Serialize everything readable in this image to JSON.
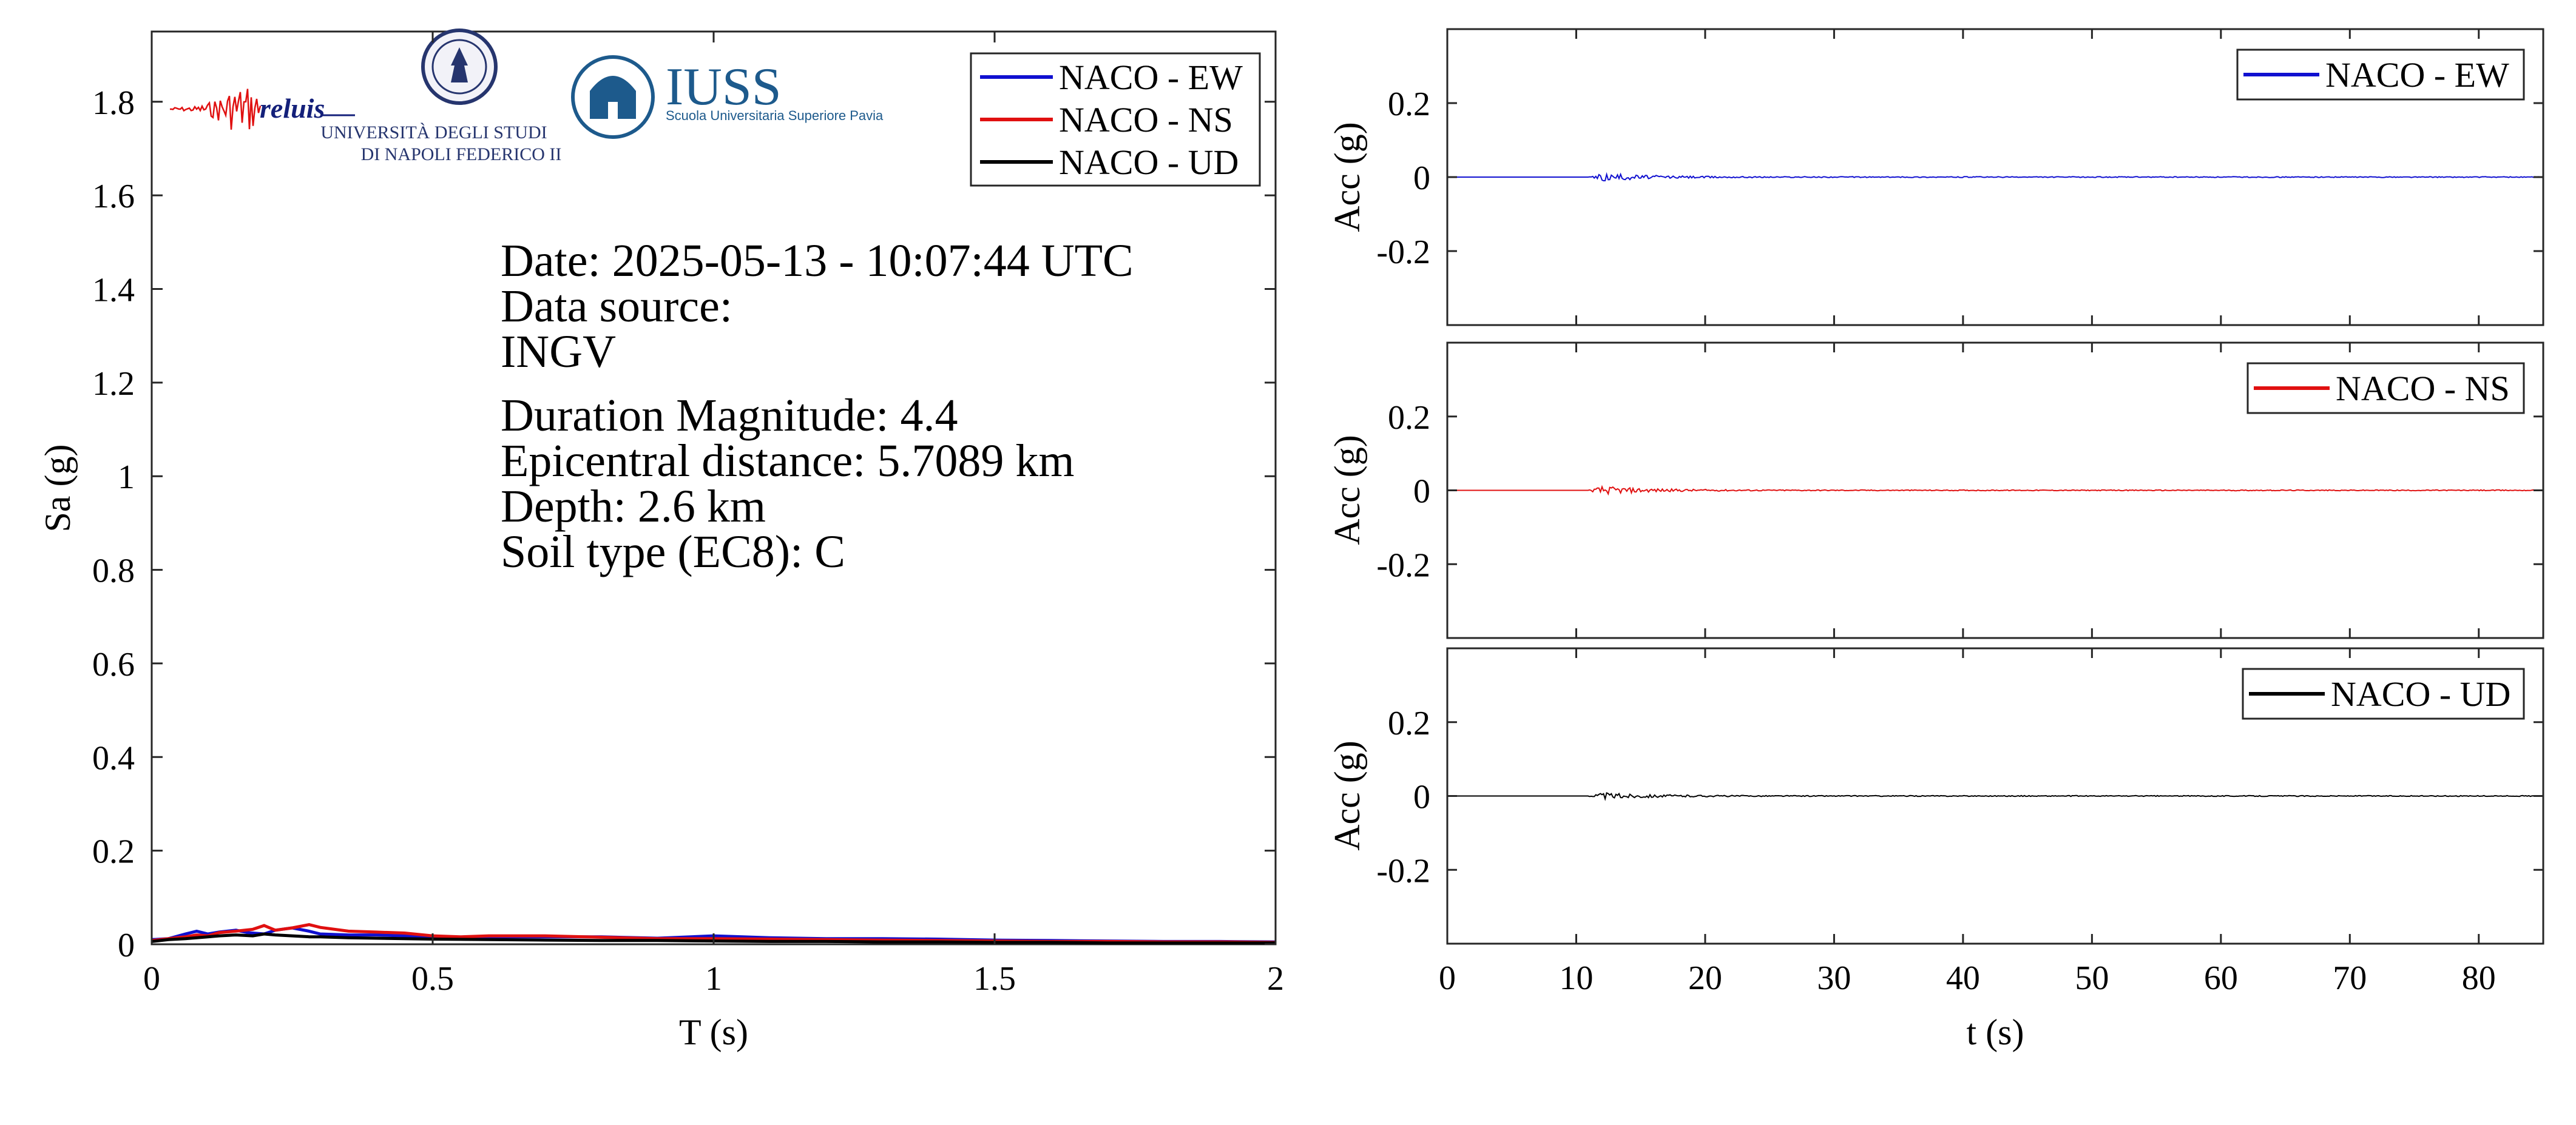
{
  "logos": {
    "reluis": "reluis",
    "unina_line1": "UNIVERSITÀ DEGLI STUDI",
    "unina_line2": "DI NAPOLI FEDERICO II",
    "iuss_title": "IUSS",
    "iuss_subtitle": "Scuola Universitaria Superiore Pavia"
  },
  "info": {
    "date": "Date: 2025-05-13 - 10:07:44 UTC",
    "source_label": "Data source:",
    "source": "INGV",
    "magnitude": "Duration Magnitude: 4.4",
    "distance": "Epicentral distance: 5.7089 km",
    "depth": "Depth: 2.6 km",
    "soil": "Soil type (EC8): C"
  },
  "colors": {
    "EW": "#1010d0",
    "NS": "#e01010",
    "UD": "#000000"
  },
  "chart_data": [
    {
      "type": "line",
      "xlabel": "T (s)",
      "ylabel": "Sa (g)",
      "xlim": [
        0,
        2
      ],
      "ylim": [
        0,
        1.95
      ],
      "xticks": [
        0,
        0.5,
        1,
        1.5,
        2
      ],
      "xtick_labels": [
        "0",
        "0.5",
        "1",
        "1.5",
        "2"
      ],
      "yticks": [
        0,
        0.2,
        0.4,
        0.6,
        0.8,
        1,
        1.2,
        1.4,
        1.6,
        1.8
      ],
      "ytick_labels": [
        "0",
        "0.2",
        "0.4",
        "0.6",
        "0.8",
        "1",
        "1.2",
        "1.4",
        "1.6",
        "1.8"
      ],
      "grid": false,
      "legend_position": "top-right",
      "series": [
        {
          "name": "NACO - EW",
          "color_key": "EW",
          "x": [
            0,
            0.03,
            0.06,
            0.08,
            0.1,
            0.12,
            0.15,
            0.17,
            0.2,
            0.22,
            0.25,
            0.28,
            0.3,
            0.35,
            0.4,
            0.45,
            0.5,
            0.55,
            0.6,
            0.7,
            0.8,
            0.9,
            1.0,
            1.1,
            1.2,
            1.3,
            1.4,
            1.5,
            1.6,
            1.7,
            1.8,
            1.9,
            2.0
          ],
          "y": [
            0.01,
            0.012,
            0.022,
            0.028,
            0.022,
            0.026,
            0.03,
            0.025,
            0.022,
            0.03,
            0.035,
            0.028,
            0.022,
            0.02,
            0.02,
            0.018,
            0.016,
            0.015,
            0.016,
            0.016,
            0.016,
            0.013,
            0.018,
            0.014,
            0.012,
            0.012,
            0.011,
            0.009,
            0.008,
            0.007,
            0.006,
            0.006,
            0.005
          ]
        },
        {
          "name": "NACO - NS",
          "color_key": "NS",
          "x": [
            0,
            0.03,
            0.06,
            0.08,
            0.1,
            0.12,
            0.15,
            0.18,
            0.2,
            0.22,
            0.25,
            0.28,
            0.3,
            0.35,
            0.4,
            0.45,
            0.5,
            0.55,
            0.6,
            0.7,
            0.8,
            0.9,
            1.0,
            1.1,
            1.2,
            1.3,
            1.4,
            1.5,
            1.6,
            1.7,
            1.8,
            1.9,
            2.0
          ],
          "y": [
            0.008,
            0.012,
            0.016,
            0.02,
            0.018,
            0.025,
            0.028,
            0.032,
            0.04,
            0.03,
            0.035,
            0.042,
            0.036,
            0.028,
            0.026,
            0.024,
            0.018,
            0.016,
            0.018,
            0.018,
            0.015,
            0.012,
            0.012,
            0.011,
            0.01,
            0.009,
            0.008,
            0.007,
            0.006,
            0.006,
            0.005,
            0.005,
            0.004
          ]
        },
        {
          "name": "NACO - UD",
          "color_key": "UD",
          "x": [
            0,
            0.03,
            0.06,
            0.08,
            0.1,
            0.12,
            0.15,
            0.18,
            0.2,
            0.22,
            0.25,
            0.28,
            0.3,
            0.35,
            0.4,
            0.45,
            0.5,
            0.6,
            0.7,
            0.8,
            0.9,
            1.0,
            1.1,
            1.2,
            1.3,
            1.4,
            1.5,
            1.6,
            1.7,
            1.8,
            1.9,
            2.0
          ],
          "y": [
            0.006,
            0.01,
            0.012,
            0.014,
            0.016,
            0.018,
            0.02,
            0.018,
            0.022,
            0.02,
            0.018,
            0.016,
            0.016,
            0.014,
            0.013,
            0.012,
            0.011,
            0.01,
            0.009,
            0.008,
            0.008,
            0.007,
            0.006,
            0.006,
            0.005,
            0.005,
            0.004,
            0.004,
            0.003,
            0.003,
            0.003,
            0.003
          ]
        }
      ]
    },
    {
      "type": "line",
      "ylabel": "Acc (g)",
      "xlim": [
        0,
        85
      ],
      "ylim": [
        -0.4,
        0.4
      ],
      "yticks": [
        -0.2,
        0,
        0.2
      ],
      "ytick_labels": [
        "-0.2",
        "0",
        "0.2"
      ],
      "xticks": [
        0,
        10,
        20,
        30,
        40,
        50,
        60,
        70,
        80
      ],
      "grid": false,
      "legend_position": "top-right",
      "series": [
        {
          "name": "NACO - EW",
          "color_key": "EW",
          "onset_s": 11,
          "peak_g": 0.01,
          "duration_s": 85
        }
      ]
    },
    {
      "type": "line",
      "ylabel": "Acc (g)",
      "xlim": [
        0,
        85
      ],
      "ylim": [
        -0.4,
        0.4
      ],
      "yticks": [
        -0.2,
        0,
        0.2
      ],
      "ytick_labels": [
        "-0.2",
        "0",
        "0.2"
      ],
      "xticks": [
        0,
        10,
        20,
        30,
        40,
        50,
        60,
        70,
        80
      ],
      "grid": false,
      "legend_position": "top-right",
      "series": [
        {
          "name": "NACO - NS",
          "color_key": "NS",
          "onset_s": 11,
          "peak_g": 0.01,
          "duration_s": 85
        }
      ]
    },
    {
      "type": "line",
      "xlabel": "t (s)",
      "ylabel": "Acc (g)",
      "xlim": [
        0,
        85
      ],
      "ylim": [
        -0.4,
        0.4
      ],
      "xticks": [
        0,
        10,
        20,
        30,
        40,
        50,
        60,
        70,
        80
      ],
      "xtick_labels": [
        "0",
        "10",
        "20",
        "30",
        "40",
        "50",
        "60",
        "70",
        "80"
      ],
      "yticks": [
        -0.2,
        0,
        0.2
      ],
      "ytick_labels": [
        "-0.2",
        "0",
        "0.2"
      ],
      "grid": false,
      "legend_position": "top-right",
      "series": [
        {
          "name": "NACO - UD",
          "color_key": "UD",
          "onset_s": 11,
          "peak_g": 0.008,
          "duration_s": 85
        }
      ]
    }
  ]
}
